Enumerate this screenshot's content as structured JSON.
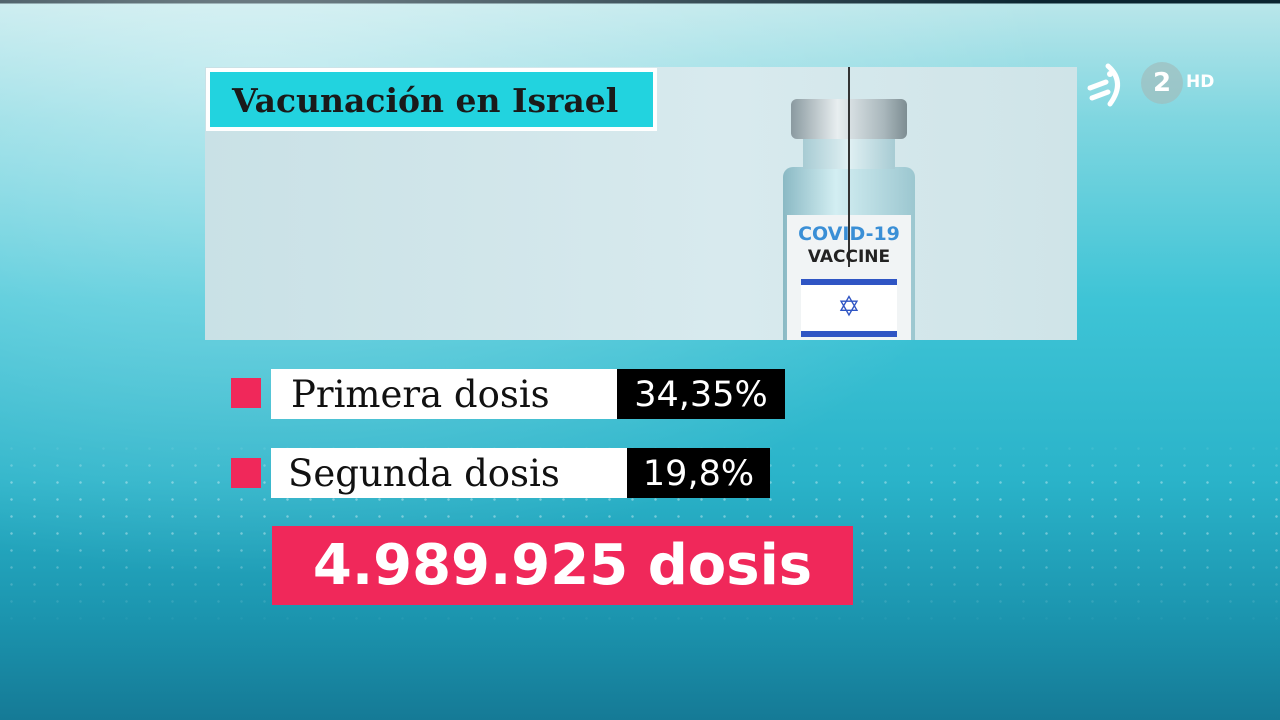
{
  "title": "Vacunación en Israel",
  "vial": {
    "line1": "COVID-19",
    "line2": "VACCINE"
  },
  "channel_logo": {
    "number": "2",
    "quality": "HD",
    "icon": "eitb-logo-icon"
  },
  "stats": [
    {
      "label": "Primera dosis",
      "value": "34,35%"
    },
    {
      "label": "Segunda dosis",
      "value": "19,8%"
    }
  ],
  "total": "4.989.925 dosis",
  "colors": {
    "accent": "#f0285a",
    "title_bg": "#22d3df",
    "value_bg": "#000000"
  }
}
